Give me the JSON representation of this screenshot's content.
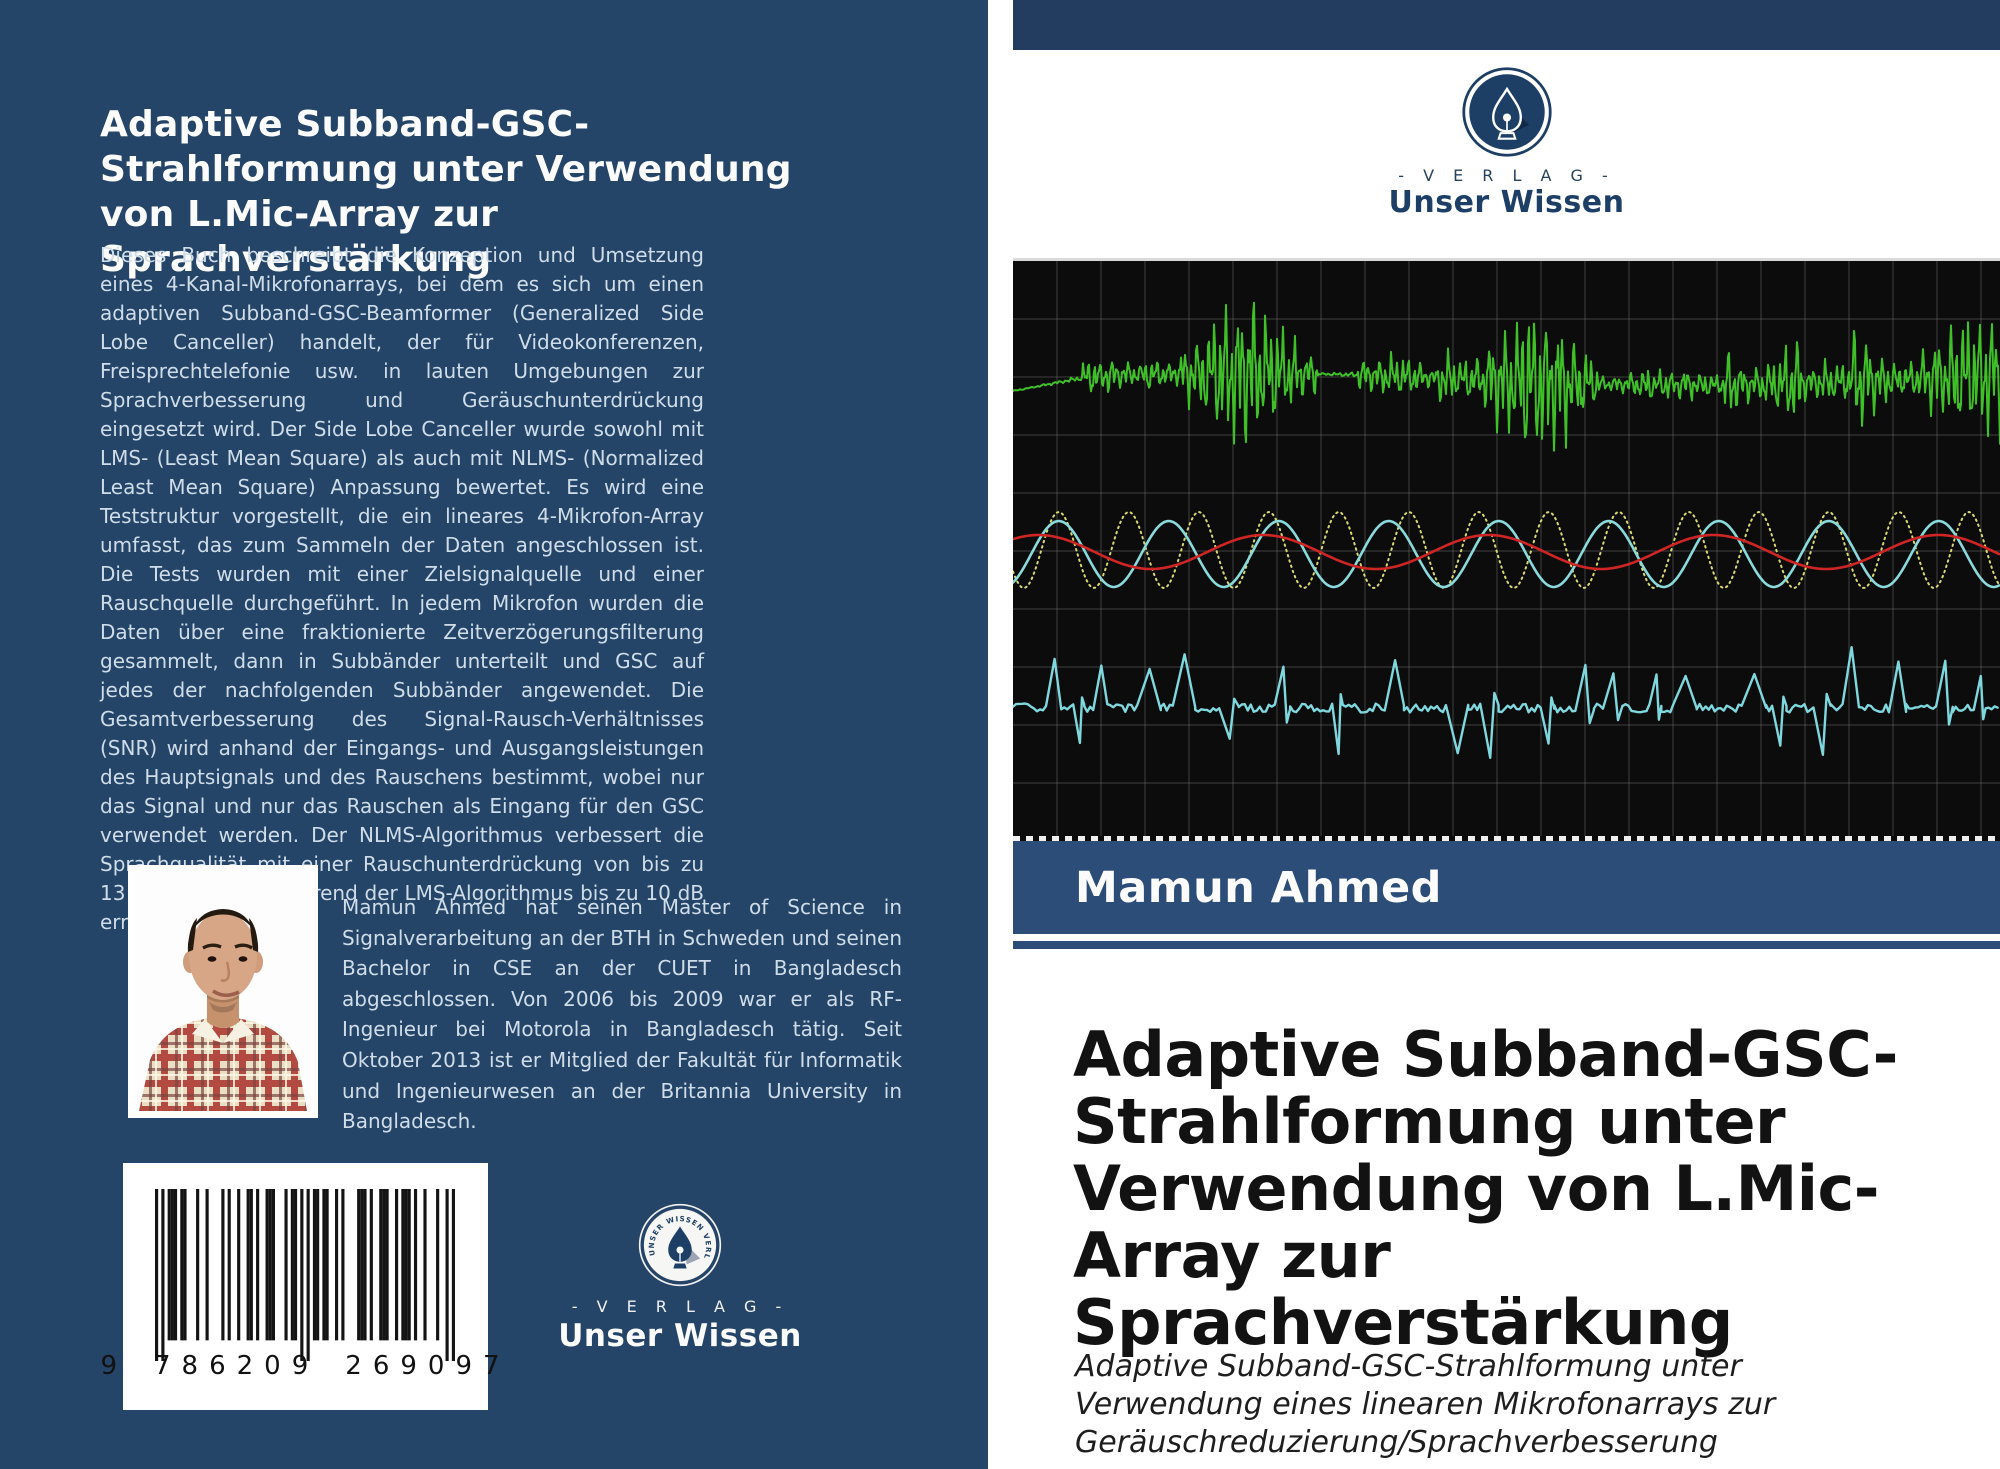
{
  "back": {
    "title": "Adaptive Subband-GSC-\nStrahlformung unter Verwendung\nvon L.Mic-Array zur\nSprachverstärkung",
    "description": "Dieses Buch beschreibt die Konzeption und Umsetzung eines 4-Kanal-Mikrofonarrays, bei dem es sich um einen adaptiven Subband-GSC-Beamformer (Generalized Side Lobe Canceller) handelt, der für Videokonferenzen, Freisprechtelefonie usw. in lauten Umgebungen zur Sprachverbesserung und Geräuschunterdrückung eingesetzt wird. Der Side Lobe Canceller wurde sowohl mit LMS- (Least Mean Square) als auch mit NLMS- (Normalized Least Mean Square) Anpassung bewertet. Es wird eine Teststruktur vorgestellt, die ein lineares 4-Mikrofon-Array umfasst, das zum Sammeln der Daten angeschlossen ist. Die Tests wurden mit einer Zielsignalquelle und einer Rauschquelle durchgeführt. In jedem Mikrofon wurden die Daten über eine fraktionierte Zeitverzögerungsfilterung gesammelt, dann in Subbänder unterteilt und GSC auf jedes der nachfolgenden Subbänder angewendet. Die Gesamtverbesserung des Signal-Rausch-Verhältnisses (SNR) wird anhand der Eingangs- und Ausgangsleistungen des Hauptsignals und des Rauschens bestimmt, wobei nur das Signal und nur das Rauschen als Eingang für den GSC verwendet werden. Der NLMS-Algorithmus verbessert die Sprachqualität mit einer Rauschunterdrückung von bis zu 13 dB erheblich, während der LMS-Algorithmus bis zu 10 dB erreicht.",
    "author_bio": "Mamun Ahmed hat seinen Master of Science in Signalverarbeitung an der BTH in Schweden und seinen Bachelor in CSE an der CUET in Bangladesch abgeschlossen. Von 2006 bis 2009 war er als RF-Ingenieur bei Motorola in Bangladesch tätig. Seit Oktober 2013 ist er Mitglied der Fakultät für Informatik und Ingenieurwesen an der Britannia University in Bangladesch.",
    "barcode_number": "9786209269097",
    "barcode_groups": [
      "9",
      "786209",
      "269097"
    ],
    "emblem_arc_text": "UNSER WISSEN VERLAG"
  },
  "publisher": {
    "verlag_line": "- V E R L A G -",
    "name": "Unser Wissen"
  },
  "front": {
    "author": "Mamun Ahmed",
    "title": "Adaptive Subband-GSC-\nStrahlformung unter\nVerwendung von L.Mic-\nArray zur\nSprachverstärkung",
    "subtitle": "Adaptive Subband-GSC-Strahlformung unter\nVerwendung eines linearen Mikrofonarrays zur\nGeräuschreduzierung/Sprachverbesserung"
  },
  "colors": {
    "back_navy": "#254568",
    "band_navy": "#2b4d77",
    "topbar_navy": "#223d5f",
    "logo_navy": "#1d3f66",
    "plot_bg": "#0c0c0c",
    "grid_gray": "#777777",
    "wave_green": "#3fbf28",
    "wave_yellow": "#d9d971",
    "wave_cyan": "#8adadc",
    "wave_red": "#cf2525",
    "wave_noisy_cyan": "#7fd8de"
  },
  "plot": {
    "type": "waveforms",
    "description": "oscilloscope-style plot: clean speech bursts (green, top), dotted interference sine (yellow) with cyan and red sines (middle), noisy speech signal (cyan, bottom) on black grid",
    "series": [
      {
        "name": "clean-speech-bursts",
        "color": "#3fbf28",
        "style": "solid"
      },
      {
        "name": "interference-sine",
        "color": "#d9d971",
        "style": "dotted"
      },
      {
        "name": "sine-cyan",
        "color": "#8adadc",
        "style": "solid"
      },
      {
        "name": "sine-red",
        "color": "#cf2525",
        "style": "solid"
      },
      {
        "name": "noisy-speech",
        "color": "#7fd8de",
        "style": "solid"
      }
    ]
  }
}
